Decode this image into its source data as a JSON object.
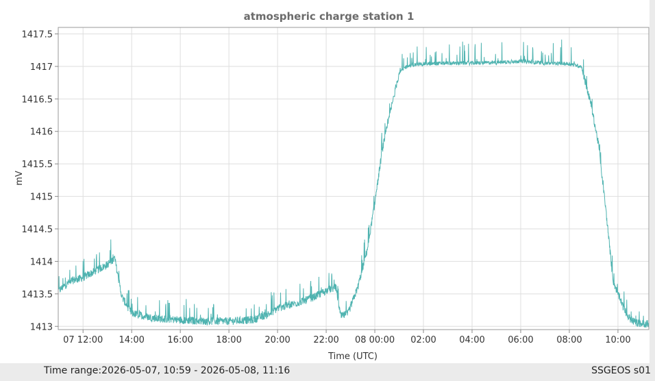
{
  "chart_data": {
    "type": "line",
    "title": "atmospheric charge station 1",
    "xlabel": "Time (UTC)",
    "ylabel": "mV",
    "ylim": [
      1412.95,
      1417.6
    ],
    "xlim_hours": [
      10.98,
      35.27
    ],
    "grid": true,
    "y_ticks": [
      1413,
      1413.5,
      1414,
      1414.5,
      1415,
      1415.5,
      1416,
      1416.5,
      1417,
      1417.5
    ],
    "y_tick_labels": [
      "1413",
      "1413.5",
      "1414",
      "1414.5",
      "1415",
      "1415.5",
      "1416",
      "1416.5",
      "1417",
      "1417.5"
    ],
    "x_tick_hours": [
      12,
      14,
      16,
      18,
      20,
      22,
      24,
      26,
      28,
      30,
      32,
      34
    ],
    "x_tick_labels": [
      "07 12:00",
      "14:00",
      "16:00",
      "18:00",
      "20:00",
      "22:00",
      "08 00:00",
      "02:00",
      "04:00",
      "06:00",
      "08:00",
      "10:00"
    ],
    "series": [
      {
        "color": "#4fb3b0",
        "x_hours": [
          11.0,
          11.5,
          12.0,
          12.5,
          13.0,
          13.3,
          13.6,
          14.0,
          15.0,
          16.0,
          17.0,
          18.0,
          19.0,
          19.7,
          20.0,
          21.0,
          21.5,
          22.0,
          22.4,
          22.6,
          22.9,
          23.3,
          23.7,
          24.0,
          24.3,
          24.7,
          25.0,
          25.3,
          25.7,
          26.0,
          27.0,
          28.0,
          29.0,
          30.0,
          31.0,
          32.0,
          32.5,
          32.9,
          33.2,
          33.5,
          33.8,
          34.1,
          34.4,
          34.7,
          35.0,
          35.25
        ],
        "values": [
          1413.55,
          1413.7,
          1413.75,
          1413.85,
          1413.95,
          1414.05,
          1413.45,
          1413.2,
          1413.12,
          1413.1,
          1413.08,
          1413.08,
          1413.1,
          1413.2,
          1413.28,
          1413.38,
          1413.45,
          1413.55,
          1413.6,
          1413.15,
          1413.2,
          1413.6,
          1414.2,
          1414.9,
          1415.7,
          1416.4,
          1416.9,
          1417.0,
          1417.03,
          1417.04,
          1417.05,
          1417.05,
          1417.06,
          1417.08,
          1417.05,
          1417.04,
          1417.0,
          1416.4,
          1415.8,
          1414.8,
          1413.7,
          1413.4,
          1413.15,
          1413.06,
          1413.04,
          1413.04
        ]
      }
    ]
  },
  "footer": {
    "time_range": "Time range:2026-05-07, 10:59 - 2026-05-08, 11:16",
    "station": "SSGEOS s01"
  }
}
